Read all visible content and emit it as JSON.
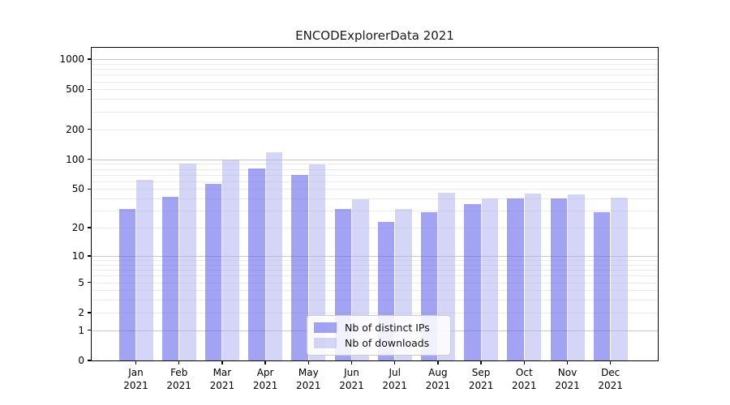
{
  "chart_data": {
    "type": "bar",
    "title": "ENCODExplorerData 2021",
    "categories": [
      "Jan",
      "Feb",
      "Mar",
      "Apr",
      "May",
      "Jun",
      "Jul",
      "Aug",
      "Sep",
      "Oct",
      "Nov",
      "Dec"
    ],
    "year_label": "2021",
    "series": [
      {
        "name": "Nb of distinct IPs",
        "color": "rgba(88,88,235,0.55)",
        "values": [
          31,
          42,
          56,
          81,
          70,
          31,
          23,
          29,
          35,
          40,
          40,
          29
        ]
      },
      {
        "name": "Nb of downloads",
        "color": "rgba(175,175,242,0.52)",
        "values": [
          62,
          91,
          100,
          118,
          89,
          39,
          31,
          46,
          40,
          45,
          44,
          41
        ]
      }
    ],
    "yscale": "log1p",
    "ylim": [
      0,
      1300
    ],
    "y_ticks": [
      0,
      1,
      2,
      5,
      10,
      20,
      50,
      100,
      200,
      500,
      1000
    ],
    "grid_major": [
      1,
      10,
      100,
      1000
    ],
    "grid_minor": [
      2,
      3,
      4,
      6,
      7,
      8,
      9,
      5,
      20,
      30,
      40,
      50,
      60,
      70,
      80,
      90,
      200,
      300,
      400,
      500,
      600,
      700,
      800,
      900
    ],
    "grid": true,
    "legend_position": "lower-center",
    "xlabel": "",
    "ylabel": ""
  },
  "colors": {
    "grid_major": "#c9c9c9",
    "grid_minor": "#ebebeb",
    "axis": "#000000",
    "text": "#1a1a1a",
    "background": "#ffffff"
  }
}
